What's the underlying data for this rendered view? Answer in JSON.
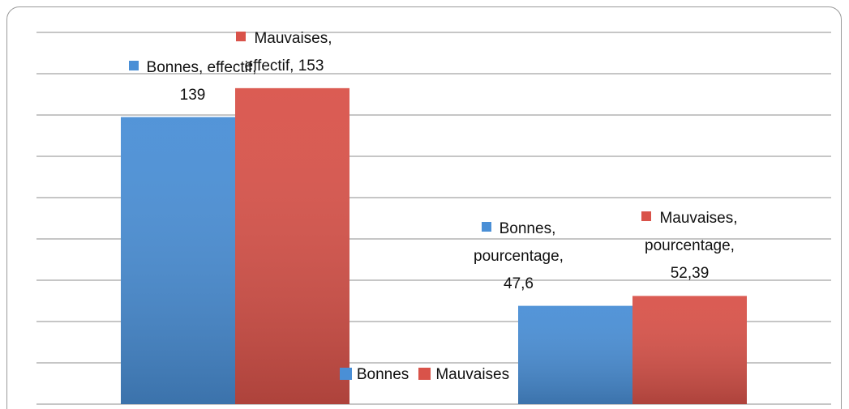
{
  "chart_data": {
    "type": "bar",
    "categories": [
      null,
      null
    ],
    "series": [
      {
        "name": "Bonnes",
        "color": "#4a8fd6",
        "values": [
          139,
          47.6
        ],
        "value_labels": [
          "Bonnes, effectif, 139",
          "Bonnes, pourcentage, 47,6"
        ]
      },
      {
        "name": "Mauvaises",
        "color": "#d9534a",
        "values": [
          153,
          52.39
        ],
        "value_labels": [
          "Mauvaises, effectif, 153",
          "Mauvaises, pourcentage, 52,39"
        ]
      }
    ],
    "ylim": [
      0,
      180
    ],
    "yticks": [
      0,
      20,
      40,
      60,
      80,
      100,
      120,
      140,
      160,
      180
    ],
    "grid": true,
    "legend": "bottom"
  }
}
